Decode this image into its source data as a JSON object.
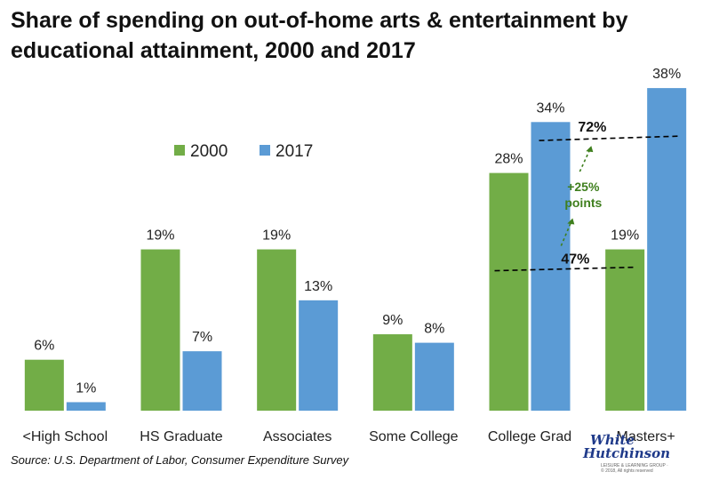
{
  "chart_data": {
    "type": "bar",
    "title": "Share of spending on out-of-home arts & entertainment by educational attainment, 2000 and 2017",
    "categories": [
      "<High School",
      "HS Graduate",
      "Associates",
      "Some College",
      "College Grad",
      "Masters+"
    ],
    "series": [
      {
        "name": "2000",
        "color": "#72ad47",
        "values": [
          6,
          19,
          19,
          9,
          28,
          19
        ],
        "labels": [
          "6%",
          "19%",
          "19%",
          "9%",
          "28%",
          "19%"
        ]
      },
      {
        "name": "2017",
        "color": "#5b9bd5",
        "values": [
          1,
          7,
          13,
          8,
          34,
          38
        ],
        "labels": [
          "1%",
          "7%",
          "13%",
          "8%",
          "34%",
          "38%"
        ]
      }
    ],
    "ylim": [
      0,
      40
    ],
    "grid": false,
    "legend_position": "top-center",
    "annotations": {
      "upper_value": "72%",
      "lower_value": "47%",
      "change_label_line1": "+25%",
      "change_label_line2": "points",
      "change_color": "#3f7f1e"
    },
    "source": "Source: U.S. Department of Labor, Consumer Expenditure Survey"
  },
  "logo": {
    "line1": "White",
    "line2": "Hutchinson",
    "line3": "LEISURE & LEARNING GROUP · © 2018, All rights reserved"
  }
}
